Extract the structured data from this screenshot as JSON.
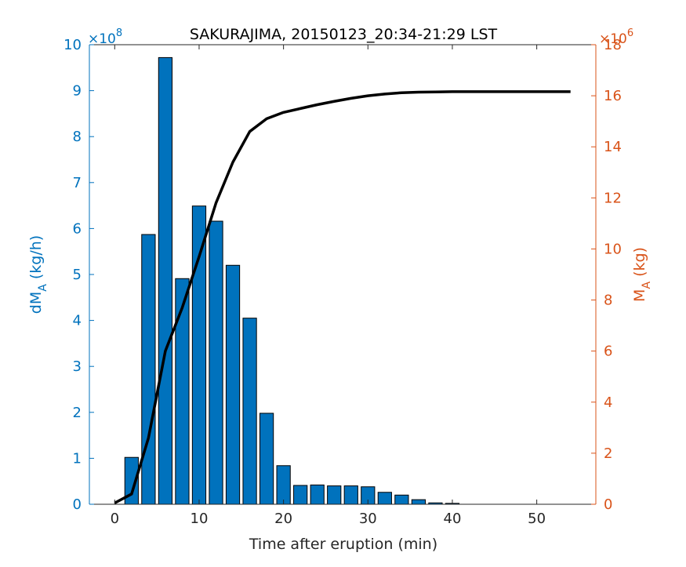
{
  "chart_data": {
    "type": "bar",
    "title": "SAKURAJIMA, 20150123_20:34-21:29 LST",
    "xlabel": "Time after eruption (min)",
    "xlim": [
      -3,
      57
    ],
    "xticks": [
      0,
      10,
      20,
      30,
      40,
      50
    ],
    "left_axis": {
      "label_main": "dM",
      "label_sub": "A",
      "label_unit": " (kg/h)",
      "exponent_label": "×10",
      "exponent": "8",
      "ylim": [
        0,
        10
      ],
      "ticks": [
        0,
        1,
        2,
        3,
        4,
        5,
        6,
        7,
        8,
        9,
        10
      ],
      "color": "#0072BD"
    },
    "right_axis": {
      "label_main": "M",
      "label_sub": "A",
      "label_unit": " (kg)",
      "exponent_label": "×10",
      "exponent": "6",
      "ylim": [
        0,
        18
      ],
      "ticks": [
        0,
        2,
        4,
        6,
        8,
        10,
        12,
        14,
        16,
        18
      ],
      "color": "#D95319"
    },
    "bar_series": {
      "axis": "left",
      "color": "#0072BD",
      "x": [
        2,
        4,
        6,
        8,
        10,
        12,
        14,
        16,
        18,
        20,
        22,
        24,
        26,
        28,
        30,
        32,
        34,
        36,
        38,
        40
      ],
      "values": [
        1.02,
        5.87,
        9.72,
        4.91,
        6.49,
        6.16,
        5.2,
        4.05,
        1.98,
        0.84,
        0.41,
        0.42,
        0.4,
        0.4,
        0.38,
        0.26,
        0.2,
        0.1,
        0.03,
        0.02
      ]
    },
    "line_series": {
      "axis": "right",
      "color": "#000000",
      "x": [
        0,
        2,
        4,
        6,
        8,
        10,
        12,
        14,
        16,
        18,
        20,
        22,
        24,
        26,
        28,
        30,
        32,
        34,
        36,
        38,
        40,
        42,
        44,
        46,
        48,
        50,
        52,
        54
      ],
      "values": [
        0.05,
        0.4,
        2.6,
        6.0,
        7.7,
        9.7,
        11.8,
        13.4,
        14.6,
        15.1,
        15.35,
        15.5,
        15.65,
        15.78,
        15.9,
        16.0,
        16.07,
        16.12,
        16.14,
        16.15,
        16.16,
        16.16,
        16.16,
        16.16,
        16.16,
        16.16,
        16.16,
        16.16
      ]
    }
  }
}
